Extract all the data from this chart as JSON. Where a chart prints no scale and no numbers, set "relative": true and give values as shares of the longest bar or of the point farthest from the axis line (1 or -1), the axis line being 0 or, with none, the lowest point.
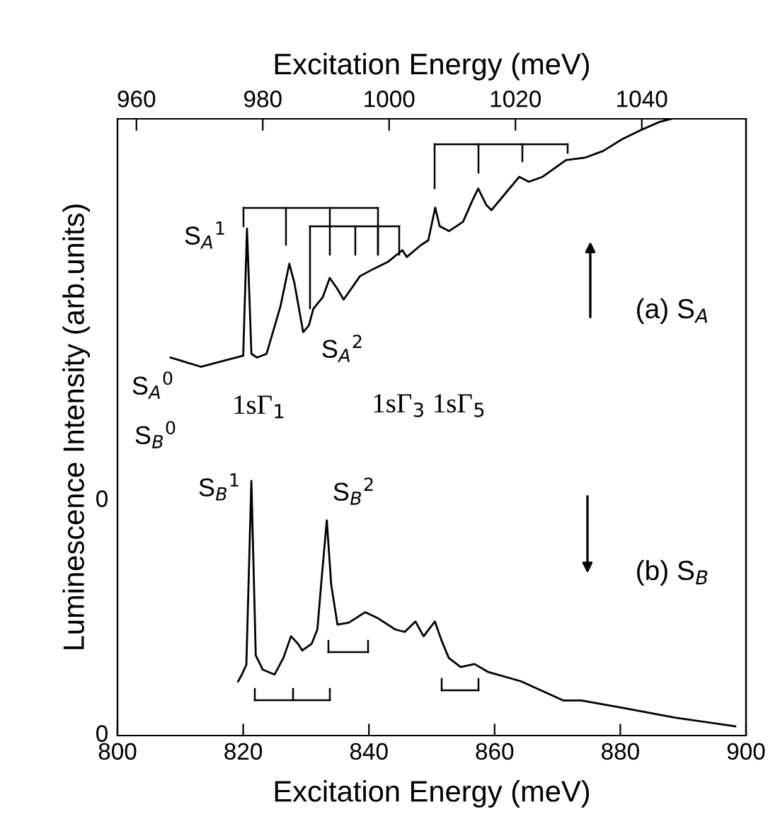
{
  "chart_data": {
    "type": "line",
    "relative": true,
    "xlabel": "Excitation Energy (meV)",
    "x2label": "Excitation Energy (meV)",
    "ylabel": "Luminescence Intensity (arb.units)",
    "xlim": [
      800,
      900
    ],
    "xticks": [
      800,
      820,
      840,
      860,
      880,
      900
    ],
    "x2lim": [
      957,
      1056.5
    ],
    "x2ticks": [
      960,
      980,
      1000,
      1020,
      1040
    ],
    "grid": false,
    "legend": false,
    "marker": "none",
    "line_style": "solid",
    "annotations": [
      "S$_{A}$$^{1}$",
      "S$_{A}$$^{2}$",
      "S$_{A}$$^{0}$",
      "S$_{B}$$^{0}$",
      "1sΓ$_{1}$",
      "1sΓ$_{3}$ 1sΓ$_{5}$",
      "S$_{B}$$^{1}$",
      "S$_{B}$$^{2}$",
      "0",
      "0",
      "(a) S$_{A}$",
      "(b) S$_{B}$"
    ],
    "series": [
      {
        "color": "#000000",
        "axis": "x2",
        "x": [
          965.4,
          970.2,
          975.4,
          976.9,
          977.5,
          978.2,
          979.1,
          980.6,
          982.8,
          984.2,
          985.0,
          986.4,
          987.3,
          988.0,
          989.5,
          990.6,
          991.7,
          992.8,
          995.4,
          997.6,
          999.8,
          1002.1,
          1002.8,
          1005.0,
          1006.2,
          1007.3,
          1008.0,
          1009.5,
          1011.7,
          1013.2,
          1014.1,
          1015.4,
          1016.2,
          1018.4,
          1020.6,
          1022.1,
          1024.3,
          1026.9,
          1028.0,
          1031.0,
          1033.9,
          1036.9,
          1039.9,
          1042.8,
          1044.7
        ],
        "values": [
          0.613,
          0.598,
          0.612,
          0.616,
          0.822,
          0.619,
          0.613,
          0.619,
          0.696,
          0.765,
          0.734,
          0.654,
          0.665,
          0.692,
          0.711,
          0.742,
          0.726,
          0.707,
          0.745,
          0.757,
          0.768,
          0.787,
          0.776,
          0.795,
          0.803,
          0.856,
          0.826,
          0.818,
          0.833,
          0.868,
          0.887,
          0.86,
          0.852,
          0.879,
          0.906,
          0.898,
          0.906,
          0.925,
          0.933,
          0.937,
          0.948,
          0.967,
          0.982,
          0.995,
          1.0
        ]
      },
      {
        "color": "#000000",
        "x": [
          819.2,
          819.8,
          820.5,
          821.3,
          822.0,
          823.1,
          825.0,
          826.4,
          827.6,
          828.7,
          829.4,
          830.9,
          831.8,
          832.4,
          833.3,
          834.0,
          835.0,
          836.8,
          839.4,
          841.3,
          844.2,
          845.7,
          847.4,
          848.7,
          850.5,
          851.6,
          852.7,
          854.6,
          856.8,
          859.0,
          864.2,
          870.9,
          873.8,
          879.8,
          888.7,
          898.3
        ],
        "values": [
          0.088,
          0.099,
          0.115,
          0.413,
          0.13,
          0.107,
          0.099,
          0.126,
          0.161,
          0.149,
          0.138,
          0.149,
          0.172,
          0.245,
          0.349,
          0.245,
          0.18,
          0.183,
          0.2,
          0.191,
          0.172,
          0.168,
          0.185,
          0.161,
          0.185,
          0.153,
          0.126,
          0.111,
          0.116,
          0.103,
          0.088,
          0.057,
          0.057,
          0.046,
          0.029,
          0.015
        ]
      }
    ]
  }
}
